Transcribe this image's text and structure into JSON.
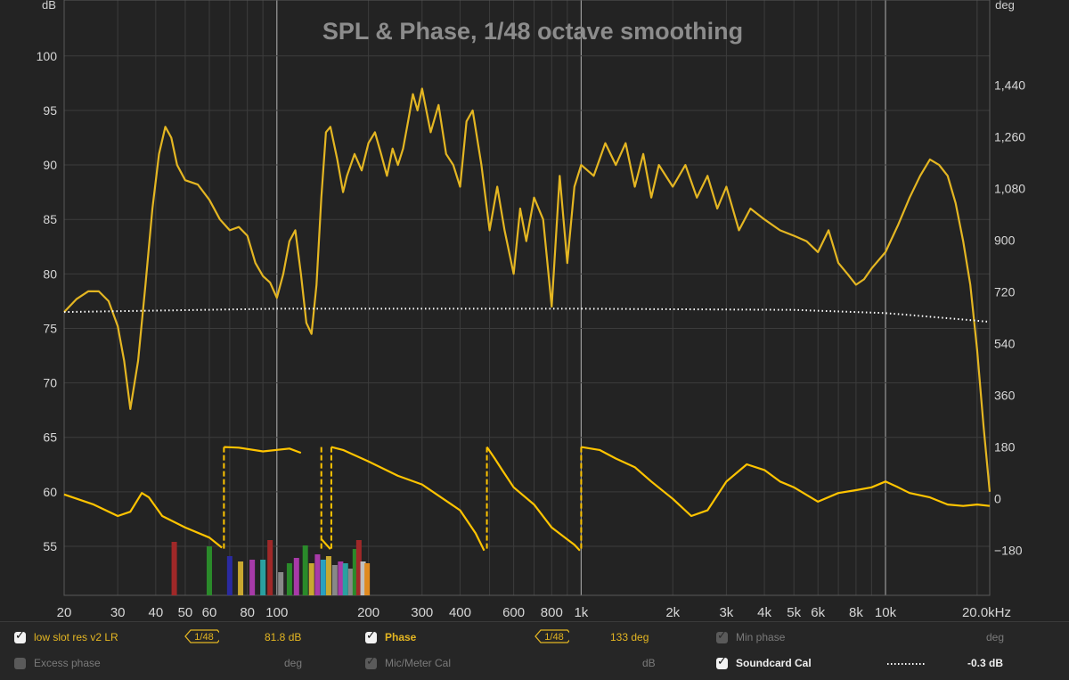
{
  "chart_data": {
    "type": "line",
    "title": "SPL & Phase, 1/48 octave smoothing",
    "left_axis": {
      "label": "dB",
      "range": [
        50.5,
        103.5
      ],
      "ticks": [
        "55",
        "60",
        "65",
        "70",
        "75",
        "80",
        "85",
        "90",
        "95",
        "100"
      ]
    },
    "right_axis": {
      "label": "deg",
      "range": [
        -336,
        1674
      ],
      "ticks": [
        "-180",
        "0",
        "180",
        "360",
        "540",
        "720",
        "900",
        "1,080",
        "1,260",
        "1,440"
      ]
    },
    "x_axis": {
      "scale": "log",
      "range": [
        20,
        22000
      ],
      "ticks": [
        "20",
        "30",
        "40",
        "50",
        "60",
        "80",
        "100",
        "200",
        "300",
        "400",
        "600",
        "800",
        "1k",
        "2k",
        "3k",
        "4k",
        "5k",
        "6k",
        "8k",
        "10k",
        "20.0kHz"
      ]
    },
    "grid": true,
    "series": [
      {
        "name": "low slot res v2 LR",
        "color": "#e4b622",
        "axis": "dB",
        "points": [
          [
            20,
            76.5
          ],
          [
            22,
            77.7
          ],
          [
            24,
            78.4
          ],
          [
            26,
            78.4
          ],
          [
            28,
            77.5
          ],
          [
            30,
            75.2
          ],
          [
            31.5,
            72
          ],
          [
            33,
            67.6
          ],
          [
            35,
            72
          ],
          [
            37,
            79
          ],
          [
            39,
            86
          ],
          [
            41,
            91
          ],
          [
            43,
            93.5
          ],
          [
            45,
            92.5
          ],
          [
            47,
            90
          ],
          [
            50,
            88.6
          ],
          [
            55,
            88.2
          ],
          [
            60,
            86.8
          ],
          [
            65,
            85
          ],
          [
            70,
            84
          ],
          [
            75,
            84.3
          ],
          [
            80,
            83.5
          ],
          [
            85,
            81
          ],
          [
            90,
            79.8
          ],
          [
            95,
            79.2
          ],
          [
            100,
            77.8
          ],
          [
            105,
            80
          ],
          [
            110,
            83
          ],
          [
            115,
            84
          ],
          [
            120,
            80
          ],
          [
            125,
            75.5
          ],
          [
            130,
            74.5
          ],
          [
            135,
            79
          ],
          [
            140,
            87
          ],
          [
            145,
            93
          ],
          [
            150,
            93.5
          ],
          [
            158,
            90.5
          ],
          [
            165,
            87.5
          ],
          [
            170,
            89
          ],
          [
            180,
            91
          ],
          [
            190,
            89.5
          ],
          [
            200,
            92
          ],
          [
            210,
            93
          ],
          [
            220,
            91
          ],
          [
            230,
            89
          ],
          [
            240,
            91.5
          ],
          [
            250,
            90
          ],
          [
            260,
            91.5
          ],
          [
            270,
            94
          ],
          [
            280,
            96.5
          ],
          [
            290,
            95
          ],
          [
            300,
            97
          ],
          [
            320,
            93
          ],
          [
            340,
            95.5
          ],
          [
            360,
            91
          ],
          [
            380,
            90
          ],
          [
            400,
            88
          ],
          [
            420,
            94
          ],
          [
            440,
            95
          ],
          [
            470,
            90
          ],
          [
            500,
            84
          ],
          [
            530,
            88
          ],
          [
            560,
            84
          ],
          [
            600,
            80
          ],
          [
            630,
            86
          ],
          [
            660,
            83
          ],
          [
            700,
            87
          ],
          [
            750,
            85
          ],
          [
            800,
            77
          ],
          [
            850,
            89
          ],
          [
            900,
            81
          ],
          [
            950,
            88
          ],
          [
            1000,
            90
          ],
          [
            1100,
            89
          ],
          [
            1200,
            92
          ],
          [
            1300,
            90
          ],
          [
            1400,
            92
          ],
          [
            1500,
            88
          ],
          [
            1600,
            91
          ],
          [
            1700,
            87
          ],
          [
            1800,
            90
          ],
          [
            2000,
            88
          ],
          [
            2200,
            90
          ],
          [
            2400,
            87
          ],
          [
            2600,
            89
          ],
          [
            2800,
            86
          ],
          [
            3000,
            88
          ],
          [
            3300,
            84
          ],
          [
            3600,
            86
          ],
          [
            4000,
            85
          ],
          [
            4500,
            84
          ],
          [
            5000,
            83.5
          ],
          [
            5500,
            83
          ],
          [
            6000,
            82
          ],
          [
            6500,
            84
          ],
          [
            7000,
            81
          ],
          [
            7500,
            80
          ],
          [
            8000,
            79
          ],
          [
            8500,
            79.5
          ],
          [
            9000,
            80.5
          ],
          [
            10000,
            82
          ],
          [
            11000,
            84.5
          ],
          [
            12000,
            87
          ],
          [
            13000,
            89
          ],
          [
            14000,
            90.5
          ],
          [
            15000,
            90
          ],
          [
            16000,
            89
          ],
          [
            17000,
            86.5
          ],
          [
            18000,
            83
          ],
          [
            19000,
            79
          ],
          [
            20000,
            73
          ],
          [
            21000,
            66
          ],
          [
            22000,
            60
          ]
        ]
      },
      {
        "name": "Soundcard Cal",
        "color": "#ffffff",
        "axis": "dB",
        "offset": "-0.3 dB",
        "points": [
          [
            20,
            76.5
          ],
          [
            100,
            76.8
          ],
          [
            1000,
            76.8
          ],
          [
            5000,
            76.7
          ],
          [
            10000,
            76.4
          ],
          [
            15000,
            76
          ],
          [
            22000,
            75.6
          ]
        ]
      },
      {
        "name": "Phase",
        "color": "#ffc400",
        "axis": "deg",
        "points": [
          [
            20,
            15
          ],
          [
            25,
            -20
          ],
          [
            30,
            -60
          ],
          [
            33,
            -45
          ],
          [
            36,
            20
          ],
          [
            38,
            5
          ],
          [
            42,
            -60
          ],
          [
            50,
            -100
          ],
          [
            60,
            -135
          ],
          [
            66,
            -170
          ],
          [
            67,
            180
          ],
          [
            75,
            178
          ],
          [
            90,
            165
          ],
          [
            110,
            175
          ],
          [
            120,
            160
          ],
          [
            140,
            -140
          ],
          [
            150,
            -175
          ],
          [
            151,
            180
          ],
          [
            165,
            170
          ],
          [
            200,
            130
          ],
          [
            250,
            80
          ],
          [
            300,
            50
          ],
          [
            400,
            -40
          ],
          [
            450,
            -120
          ],
          [
            480,
            -180
          ],
          [
            490,
            180
          ],
          [
            520,
            140
          ],
          [
            550,
            100
          ],
          [
            600,
            40
          ],
          [
            700,
            -20
          ],
          [
            800,
            -100
          ],
          [
            950,
            -160
          ],
          [
            990,
            -180
          ],
          [
            1000,
            180
          ],
          [
            1150,
            170
          ],
          [
            1300,
            140
          ],
          [
            1500,
            110
          ],
          [
            1700,
            60
          ],
          [
            2000,
            0
          ],
          [
            2300,
            -60
          ],
          [
            2600,
            -40
          ],
          [
            3000,
            60
          ],
          [
            3500,
            120
          ],
          [
            4000,
            100
          ],
          [
            4500,
            60
          ],
          [
            5000,
            40
          ],
          [
            6000,
            -10
          ],
          [
            7000,
            20
          ],
          [
            8000,
            30
          ],
          [
            9000,
            40
          ],
          [
            10000,
            60
          ],
          [
            11000,
            40
          ],
          [
            12000,
            20
          ],
          [
            14000,
            5
          ],
          [
            16000,
            -20
          ],
          [
            18000,
            -25
          ],
          [
            20000,
            -20
          ],
          [
            22000,
            -25
          ]
        ]
      }
    ]
  },
  "legend": {
    "row1": [
      {
        "label": "low slot res v2 LR",
        "smoothing": "1/48",
        "value": "81.8 dB"
      },
      {
        "label": "Phase",
        "smoothing": "1/48",
        "value": "133 deg"
      },
      {
        "label": "Min phase",
        "unit": "deg"
      }
    ],
    "row2": [
      {
        "label": "Excess phase",
        "unit": "deg"
      },
      {
        "label": "Mic/Meter Cal",
        "unit": "dB"
      },
      {
        "label": "Soundcard Cal",
        "value": "-0.3 dB"
      }
    ]
  }
}
